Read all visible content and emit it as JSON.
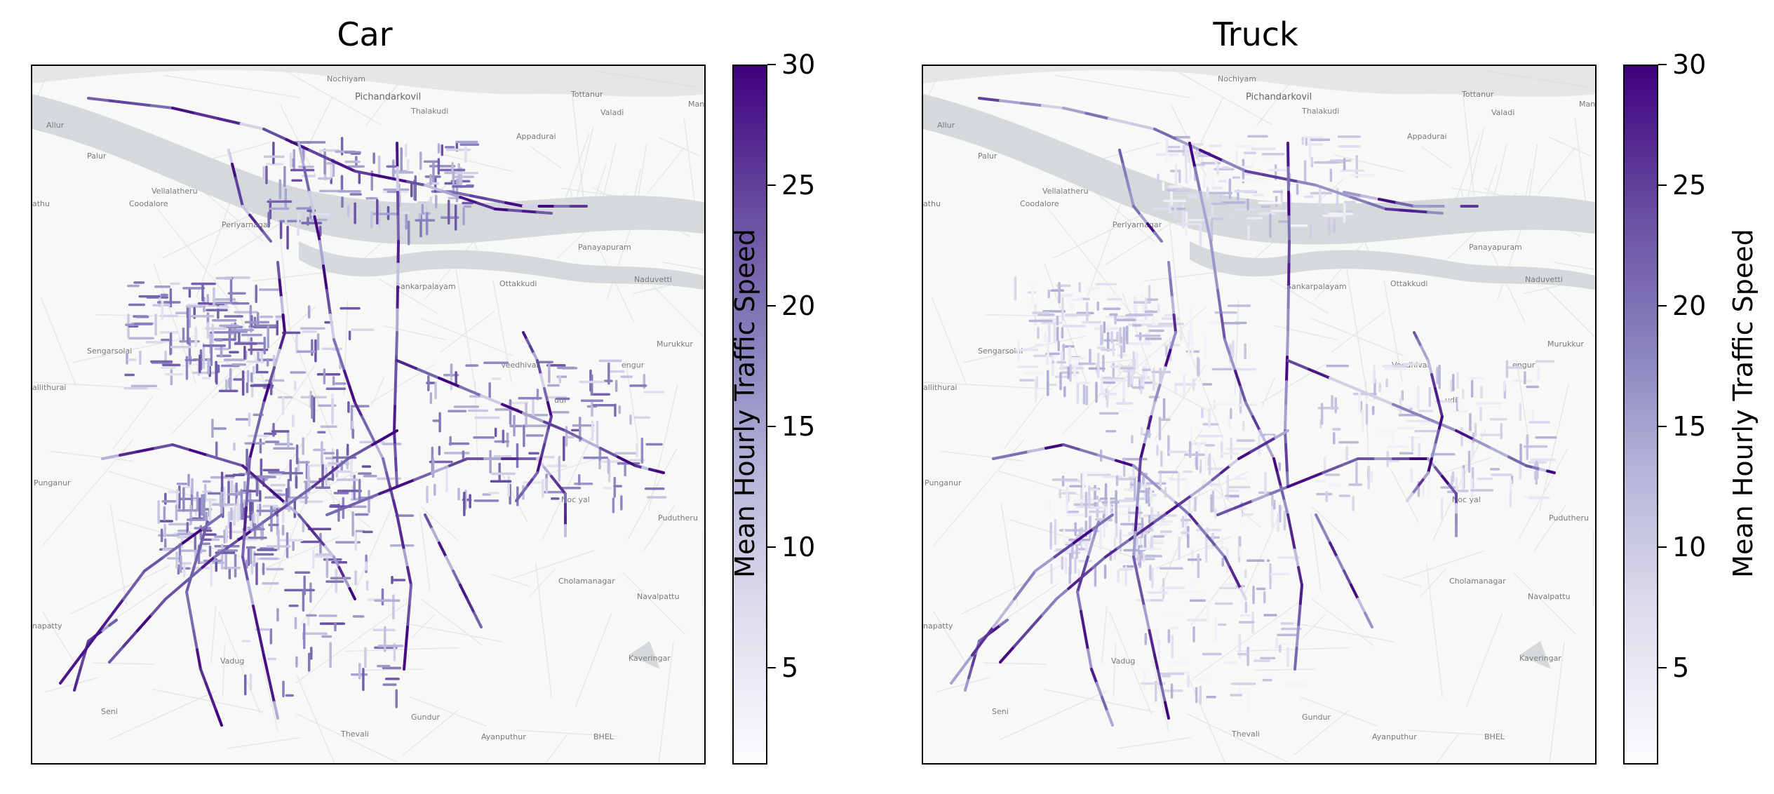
{
  "panels": [
    {
      "title": "Car",
      "mode": "car"
    },
    {
      "title": "Truck",
      "mode": "truck"
    }
  ],
  "colorbar": {
    "label": "Mean Hourly Traffic Speed",
    "ticks": [
      "5",
      "10",
      "15",
      "20",
      "25",
      "30"
    ],
    "tick_values": [
      5,
      10,
      15,
      20,
      25,
      30
    ],
    "range": [
      1,
      30
    ],
    "colormap": "Purples",
    "color_low": "#fcfbfd",
    "color_high": "#3f007d"
  },
  "basemap": {
    "water_color": "#d5d9db",
    "land_color": "#f8f8f7",
    "places": [
      "Nochiyam",
      "Pichandarkovil",
      "Tottanur",
      "Valadi",
      "Mandu",
      "Thalakudi",
      "Appadurai",
      "Allur",
      "Palur",
      "athu",
      "Coodalore",
      "Vellalatheru",
      "Periyarnagar",
      "Panayapuram",
      "Naduvetti",
      "Sankarpalayam",
      "Ottakkudi",
      "Sengarsolai",
      "Murukkur",
      "Veedhivar",
      "engur",
      "allithurai",
      "udi",
      "Punganur",
      "Noc yal",
      "Pudutheru",
      "Cholamanagar",
      "Navalpattu",
      "napatty",
      "Kaveringar",
      "Vadug",
      "Gundur",
      "Seni",
      "Thevali",
      "Ayanputhur",
      "BHEL"
    ]
  }
}
